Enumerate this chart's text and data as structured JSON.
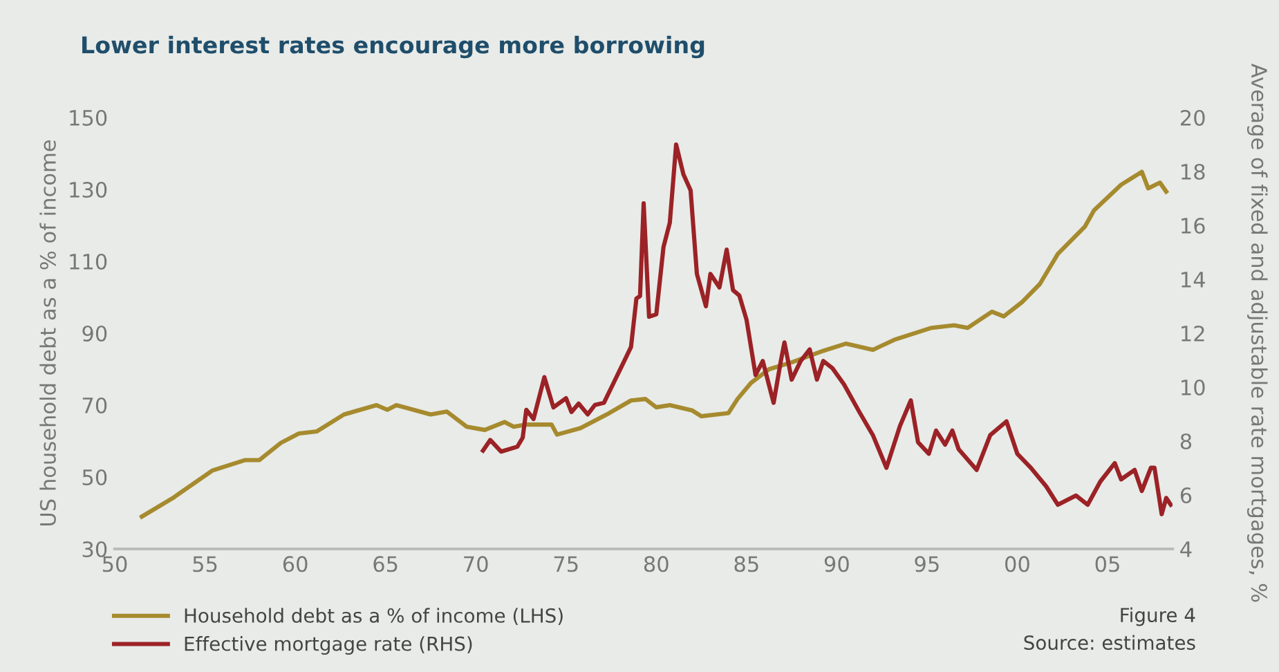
{
  "chart_data": {
    "type": "line",
    "title": "Lower interest rates encourage more borrowing",
    "ylabel": "US household debt as a % of income",
    "y2label": "Average of fixed and adjustable rate mortgages, %",
    "annotations": [
      "Figure 4",
      "Source: estimates"
    ],
    "xlim": [
      1950,
      2008.6
    ],
    "xticks": [
      {
        "value": 1950,
        "label": "50"
      },
      {
        "value": 1955,
        "label": "55"
      },
      {
        "value": 1960,
        "label": "60"
      },
      {
        "value": 1965,
        "label": "65"
      },
      {
        "value": 1970,
        "label": "70"
      },
      {
        "value": 1975,
        "label": "75"
      },
      {
        "value": 1980,
        "label": "80"
      },
      {
        "value": 1985,
        "label": "85"
      },
      {
        "value": 1990,
        "label": "90"
      },
      {
        "value": 1995,
        "label": "95"
      },
      {
        "value": 2000,
        "label": "00"
      },
      {
        "value": 2005,
        "label": "05"
      }
    ],
    "ylim": [
      30,
      150
    ],
    "yticks": [
      30,
      50,
      70,
      90,
      110,
      130,
      150
    ],
    "y2lim": [
      4,
      20
    ],
    "y2ticks": [
      4,
      6,
      8,
      10,
      12,
      14,
      16,
      18,
      20
    ],
    "grid": false,
    "legend": "bottom",
    "line_style": "solid",
    "series": [
      {
        "name": "Household debt as a % of income (LHS)",
        "color": "#a68a2e",
        "x": [
          1951.5,
          1953.2,
          1955.4,
          1957.2,
          1958.0,
          1959.2,
          1960.2,
          1961.2,
          1962.7,
          1964.5,
          1965.1,
          1965.6,
          1967.5,
          1968.4,
          1969.5,
          1970.5,
          1971.6,
          1972.1,
          1972.8,
          1974.2,
          1974.5,
          1975.8,
          1977.4,
          1978.6,
          1979.4,
          1980.0,
          1980.75,
          1982.0,
          1982.5,
          1984.0,
          1984.5,
          1985.25,
          1986.25,
          1987.5,
          1989.25,
          1990.5,
          1992.0,
          1993.25,
          1995.25,
          1996.5,
          1997.25,
          1998.6,
          1999.25,
          2000.25,
          2001.25,
          2002.25,
          2003.75,
          2004.25,
          2005.75,
          2006.9,
          2007.25,
          2007.9,
          2008.25
        ],
        "values": [
          39.0,
          44.1,
          51.8,
          54.7,
          54.7,
          59.5,
          62.1,
          62.7,
          67.4,
          70.0,
          68.7,
          70.0,
          67.4,
          68.2,
          64.0,
          63.1,
          65.3,
          64.0,
          64.6,
          64.6,
          61.8,
          63.6,
          67.8,
          71.3,
          71.7,
          69.4,
          70.0,
          68.5,
          66.9,
          67.8,
          71.7,
          76.2,
          80.0,
          81.9,
          85.1,
          87.1,
          85.4,
          88.3,
          91.5,
          92.2,
          91.5,
          96.0,
          94.7,
          98.6,
          103.7,
          112.1,
          119.7,
          124.2,
          131.3,
          134.9,
          130.3,
          131.9,
          129.4
        ]
      },
      {
        "name": "Effective mortgage rate (RHS)",
        "color": "#9b2226",
        "axis": "y2",
        "x": [
          1970.4,
          1970.8,
          1971.4,
          1972.3,
          1972.6,
          1972.8,
          1973.2,
          1973.8,
          1974.3,
          1975.0,
          1975.3,
          1975.7,
          1976.2,
          1976.6,
          1977.1,
          1977.6,
          1978.1,
          1978.6,
          1978.9,
          1979.1,
          1979.3,
          1979.6,
          1980.0,
          1980.4,
          1980.75,
          1981.1,
          1981.5,
          1981.9,
          1982.25,
          1982.75,
          1983.0,
          1983.5,
          1983.9,
          1984.25,
          1984.6,
          1985.0,
          1985.5,
          1985.9,
          1986.5,
          1986.9,
          1987.1,
          1987.5,
          1988.0,
          1988.5,
          1988.9,
          1989.25,
          1989.75,
          1990.4,
          1991.25,
          1992.0,
          1992.75,
          1993.5,
          1994.1,
          1994.5,
          1995.1,
          1995.5,
          1996.0,
          1996.4,
          1996.75,
          1997.75,
          1998.5,
          1999.4,
          2000.0,
          2000.75,
          2001.6,
          2002.25,
          2003.25,
          2003.9,
          2004.6,
          2005.4,
          2005.75,
          2006.5,
          2006.9,
          2007.4,
          2007.6,
          2008.0,
          2008.25,
          2008.5
        ],
        "values": [
          7.65,
          8.04,
          7.61,
          7.79,
          8.13,
          9.16,
          8.82,
          10.37,
          9.25,
          9.59,
          9.08,
          9.39,
          8.99,
          9.34,
          9.42,
          10.11,
          10.8,
          11.49,
          13.29,
          13.38,
          16.82,
          12.61,
          12.7,
          15.2,
          16.1,
          19.0,
          17.9,
          17.3,
          14.2,
          13.0,
          14.2,
          13.7,
          15.1,
          13.6,
          13.4,
          12.5,
          10.45,
          10.97,
          9.42,
          10.97,
          11.66,
          10.28,
          10.97,
          11.4,
          10.28,
          10.97,
          10.71,
          10.1,
          9.08,
          8.22,
          7.01,
          8.56,
          9.51,
          7.96,
          7.53,
          8.39,
          7.87,
          8.39,
          7.7,
          6.93,
          8.22,
          8.73,
          7.53,
          7.01,
          6.32,
          5.64,
          5.98,
          5.64,
          6.5,
          7.18,
          6.58,
          6.93,
          6.15,
          7.01,
          7.01,
          5.29,
          5.89,
          5.64
        ]
      }
    ]
  }
}
